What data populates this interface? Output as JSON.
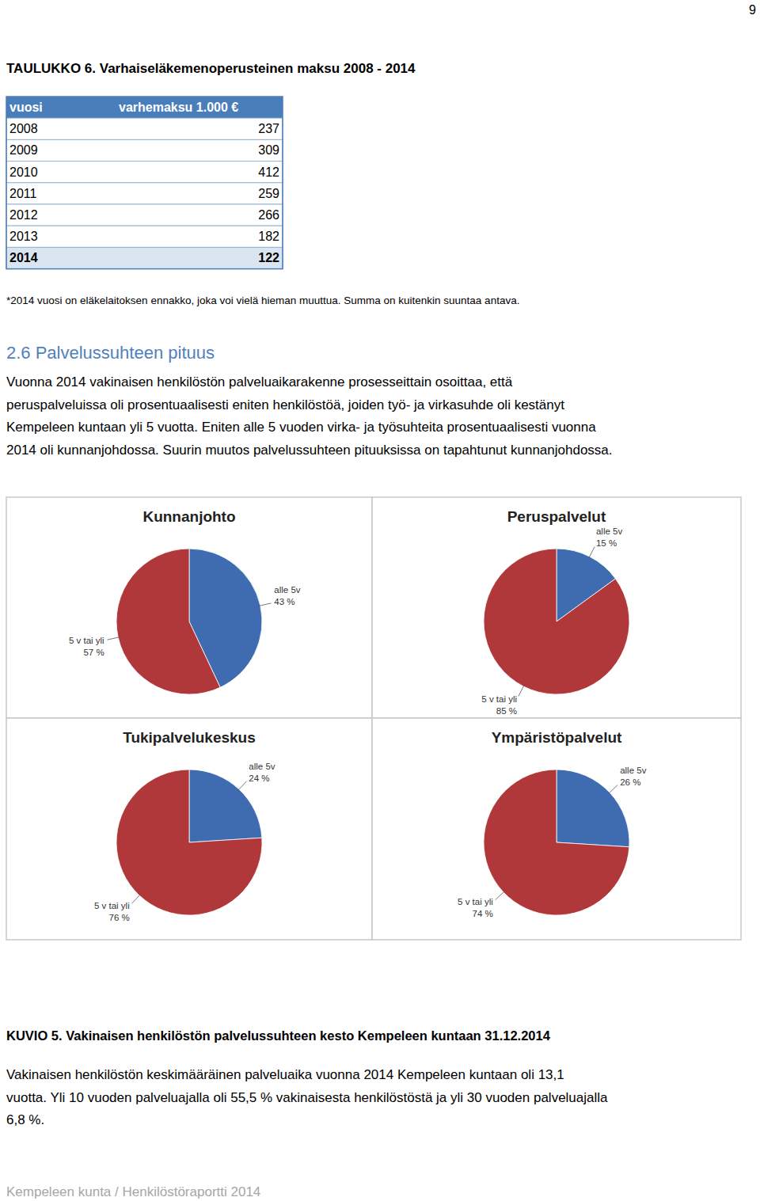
{
  "page_number": 9,
  "table_title": "TAULUKKO 6. Varhaiseläkemenoperusteinen maksu 2008 - 2014",
  "table": {
    "header": [
      "vuosi",
      "varhemaksu 1.000 €"
    ],
    "rows": [
      [
        2008,
        237
      ],
      [
        2009,
        309
      ],
      [
        2010,
        412
      ],
      [
        2011,
        259
      ],
      [
        2012,
        266
      ],
      [
        2013,
        182
      ],
      [
        2014,
        122
      ]
    ]
  },
  "footnote": "*2014 vuosi on eläkelaitoksen ennakko, joka voi vielä hieman muuttua. Summa on kuitenkin suuntaa antava.",
  "section_heading": "2.6 Palvelussuhteen pituus",
  "paragraph_lines": [
    "Vuonna 2014 vakinaisen henkilöstön palveluaikarakenne prosesseittain osoittaa, että",
    "peruspalveluissa oli prosentuaalisesti eniten henkilöstöä, joiden työ- ja virkasuhde oli kestänyt",
    "Kempeleen kuntaan yli 5 vuotta. Eniten alle 5 vuoden virka- ja työsuhteita prosentuaalisesti vuonna",
    "2014 oli kunnanjohdossa. Suurin muutos palvelussuhteen pituuksissa on tapahtunut kunnanjohdossa."
  ],
  "chart_data": [
    {
      "type": "pie",
      "title": "Kunnanjohto",
      "categories": [
        "alle 5v",
        "5 v tai yli"
      ],
      "values": [
        43,
        57
      ],
      "value_labels": [
        "43 %",
        "57 %"
      ],
      "colors": [
        "#3f6cb0",
        "#b0383a"
      ],
      "data_labels": true
    },
    {
      "type": "pie",
      "title": "Peruspalvelut",
      "categories": [
        "alle 5v",
        "5 v tai yli"
      ],
      "values": [
        15,
        85
      ],
      "value_labels": [
        "15 %",
        "85 %"
      ],
      "colors": [
        "#3f6cb0",
        "#b0383a"
      ],
      "data_labels": true
    },
    {
      "type": "pie",
      "title": "Tukipalvelukeskus",
      "categories": [
        "alle 5v",
        "5 v tai yli"
      ],
      "values": [
        24,
        76
      ],
      "value_labels": [
        "24 %",
        "76 %"
      ],
      "colors": [
        "#3f6cb0",
        "#b0383a"
      ],
      "data_labels": true
    },
    {
      "type": "pie",
      "title": "Ympäristöpalvelut",
      "categories": [
        "alle 5v",
        "5 v tai yli"
      ],
      "values": [
        26,
        74
      ],
      "value_labels": [
        "26 %",
        "74 %"
      ],
      "colors": [
        "#3f6cb0",
        "#b0383a"
      ],
      "data_labels": true
    }
  ],
  "figure_caption": "KUVIO 5. Vakinaisen henkilöstön palvelussuhteen kesto Kempeleen kuntaan 31.12.2014",
  "closing_lines": [
    "Vakinaisen henkilöstön keskimääräinen palveluaika vuonna 2014 Kempeleen kuntaan oli 13,1",
    "vuotta. Yli 10 vuoden palveluajalla oli 55,5 % vakinaisesta henkilöstöstä ja yli 30 vuoden palveluajalla",
    "6,8 %."
  ],
  "footer": "Kempeleen kunta / Henkilöstöraportti 2014"
}
